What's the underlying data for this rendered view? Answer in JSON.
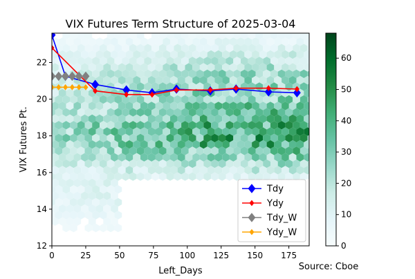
{
  "chart_data": {
    "type": "line",
    "title": "VIX Futures Term Structure of 2025-03-04",
    "xlabel": "Left_Days",
    "ylabel": "VIX Futures Pt.",
    "xlim": [
      0,
      190
    ],
    "ylim": [
      12,
      23.6
    ],
    "xticks": [
      0,
      25,
      50,
      75,
      100,
      125,
      150,
      175
    ],
    "yticks": [
      12,
      14,
      16,
      18,
      20,
      22
    ],
    "grid": false,
    "legend_position": "lower-right",
    "source_note": "Source: Cboe",
    "background": {
      "type": "hexbin-density",
      "colormap": "BuGn",
      "colorbar_range": [
        0,
        68
      ],
      "colorbar_ticks": [
        0,
        10,
        20,
        30,
        40,
        50,
        60
      ]
    },
    "series": [
      {
        "name": "Tdy",
        "color": "#0000ff",
        "marker": "diamond",
        "x": [
          0,
          10,
          32,
          55,
          74,
          92,
          117,
          136,
          160,
          181
        ],
        "y": [
          23.5,
          21.25,
          20.8,
          20.5,
          20.35,
          20.55,
          20.45,
          20.55,
          20.4,
          20.35
        ]
      },
      {
        "name": "Ydy",
        "color": "#ff0000",
        "marker": "small-diamond",
        "x": [
          0,
          32,
          55,
          74,
          92,
          117,
          136,
          160,
          181
        ],
        "y": [
          22.8,
          20.45,
          20.25,
          20.25,
          20.5,
          20.5,
          20.6,
          20.6,
          20.55
        ]
      },
      {
        "name": "Tdy_W",
        "color": "#808080",
        "marker": "diamond",
        "x": [
          0,
          5,
          10,
          15,
          20,
          25
        ],
        "y": [
          21.25,
          21.25,
          21.25,
          21.25,
          21.25,
          21.25
        ]
      },
      {
        "name": "Ydy_W",
        "color": "#ffa500",
        "marker": "small-diamond",
        "x": [
          0,
          5,
          10,
          15,
          20,
          25
        ],
        "y": [
          20.65,
          20.65,
          20.65,
          20.65,
          20.65,
          20.65
        ]
      }
    ]
  }
}
